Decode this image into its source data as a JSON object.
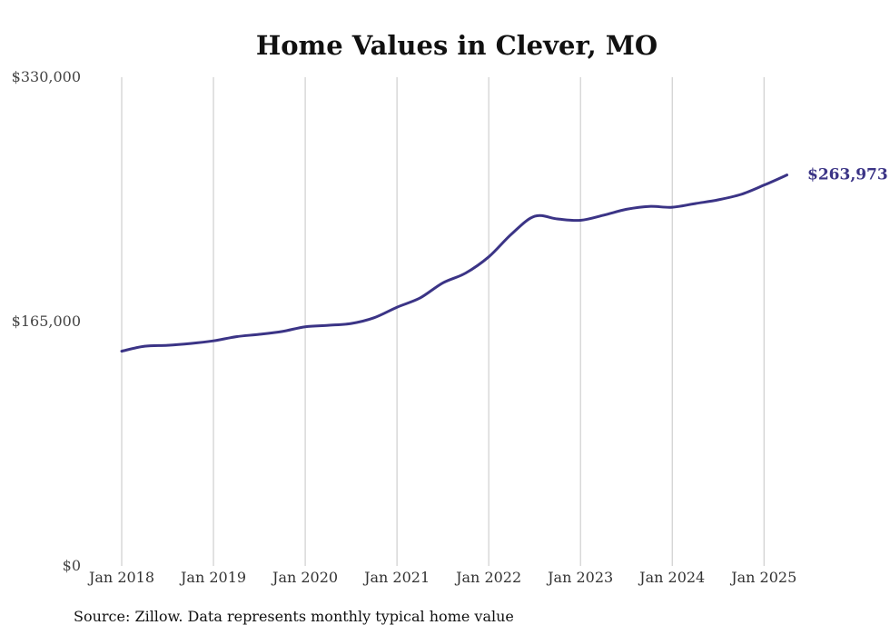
{
  "chart_data": {
    "type": "line",
    "title": "Home Values in Clever, MO",
    "xlabel": "",
    "ylabel": "",
    "ylim": [
      0,
      330000
    ],
    "xlim": [
      "2018-01",
      "2025-04"
    ],
    "grid": "vertical",
    "yticks": [
      {
        "value": 330000,
        "label": "$330,000"
      },
      {
        "value": 165000,
        "label": "$165,000"
      },
      {
        "value": 0,
        "label": "$0"
      }
    ],
    "xticks": [
      {
        "value": "2018-01",
        "label": "Jan 2018"
      },
      {
        "value": "2019-01",
        "label": "Jan 2019"
      },
      {
        "value": "2020-01",
        "label": "Jan 2020"
      },
      {
        "value": "2021-01",
        "label": "Jan 2021"
      },
      {
        "value": "2022-01",
        "label": "Jan 2022"
      },
      {
        "value": "2023-01",
        "label": "Jan 2023"
      },
      {
        "value": "2024-01",
        "label": "Jan 2024"
      },
      {
        "value": "2025-01",
        "label": "Jan 2025"
      }
    ],
    "series": [
      {
        "color": "#3b3486",
        "points": [
          {
            "x": "2018-01",
            "y": 145000
          },
          {
            "x": "2018-04",
            "y": 148400
          },
          {
            "x": "2018-07",
            "y": 149000
          },
          {
            "x": "2018-10",
            "y": 150200
          },
          {
            "x": "2019-01",
            "y": 152000
          },
          {
            "x": "2019-04",
            "y": 154800
          },
          {
            "x": "2019-07",
            "y": 156400
          },
          {
            "x": "2019-10",
            "y": 158300
          },
          {
            "x": "2020-01",
            "y": 161500
          },
          {
            "x": "2020-04",
            "y": 162500
          },
          {
            "x": "2020-07",
            "y": 163700
          },
          {
            "x": "2020-10",
            "y": 167600
          },
          {
            "x": "2021-01",
            "y": 174700
          },
          {
            "x": "2021-04",
            "y": 180900
          },
          {
            "x": "2021-07",
            "y": 191100
          },
          {
            "x": "2021-10",
            "y": 197800
          },
          {
            "x": "2022-01",
            "y": 208700
          },
          {
            "x": "2022-04",
            "y": 224200
          },
          {
            "x": "2022-07",
            "y": 236100
          },
          {
            "x": "2022-10",
            "y": 234300
          },
          {
            "x": "2023-01",
            "y": 233400
          },
          {
            "x": "2023-04",
            "y": 236800
          },
          {
            "x": "2023-07",
            "y": 240800
          },
          {
            "x": "2023-10",
            "y": 242800
          },
          {
            "x": "2024-01",
            "y": 242200
          },
          {
            "x": "2024-04",
            "y": 244700
          },
          {
            "x": "2024-07",
            "y": 247200
          },
          {
            "x": "2024-10",
            "y": 250900
          },
          {
            "x": "2025-01",
            "y": 257100
          },
          {
            "x": "2025-04",
            "y": 263973
          }
        ]
      }
    ],
    "end_label": "$263,973",
    "source": "Source: Zillow. Data represents monthly typical home value"
  }
}
